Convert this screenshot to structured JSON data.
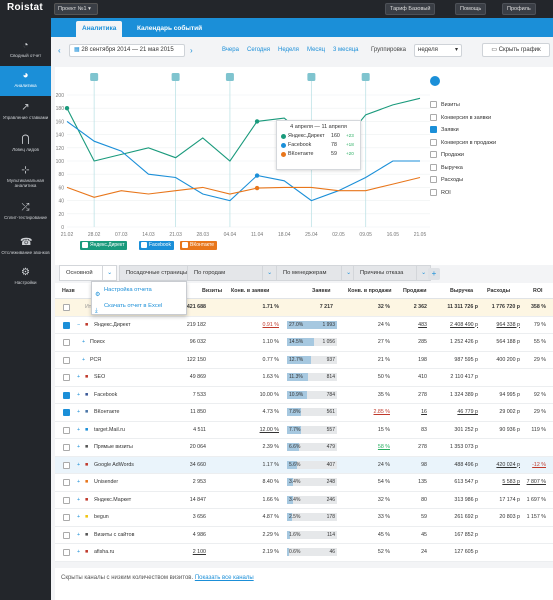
{
  "topbar": {
    "logo": "Roistat",
    "project": "Проект №1",
    "tariff": "Тариф Базовый",
    "help": "Помощь",
    "profile": "Профиль"
  },
  "sidebar": [
    {
      "label": "Сводный отчет",
      "icon": "gauge-icon"
    },
    {
      "label": "Аналитика",
      "icon": "pie-chart-icon",
      "active": true
    },
    {
      "label": "Управление ставками",
      "icon": "trend-icon"
    },
    {
      "label": "Ловец лидов",
      "icon": "magnet-icon"
    },
    {
      "label": "Мультиканальная аналитика",
      "icon": "network-icon"
    },
    {
      "label": "Сплит-тестирование",
      "icon": "shuffle-icon"
    },
    {
      "label": "Отслеживание звонков",
      "icon": "phone-icon"
    },
    {
      "label": "Настройки",
      "icon": "gear-icon"
    }
  ],
  "tabs": [
    "Аналитика",
    "Календарь событий"
  ],
  "toolbar": {
    "date_range": "28 сентября 2014 — 21 мая 2015",
    "periods": [
      "Вчера",
      "Сегодня",
      "Неделя",
      "Месяц",
      "3 месяца"
    ],
    "group_label": "Группировка",
    "group_value": "неделя",
    "hide_chart": "Скрыть график"
  },
  "chart_data": {
    "type": "line",
    "x": [
      "21.02",
      "28.02",
      "07.03",
      "14.03",
      "21.03",
      "28.03",
      "04.04",
      "11.04",
      "18.04",
      "25.04",
      "02.05",
      "09.05",
      "16.05",
      "21.05"
    ],
    "ylim": [
      0,
      200
    ],
    "yticks": [
      0,
      20,
      40,
      60,
      80,
      100,
      120,
      140,
      160,
      180,
      200
    ],
    "series": [
      {
        "name": "Яндекс.Директ",
        "color": "#1a9a7c",
        "values": [
          180,
          100,
          110,
          120,
          105,
          135,
          100,
          160,
          165,
          130,
          120,
          170,
          185,
          195
        ]
      },
      {
        "name": "Facebook",
        "color": "#1b8fd8",
        "values": [
          160,
          130,
          115,
          80,
          75,
          50,
          40,
          78,
          70,
          40,
          55,
          75,
          100,
          100
        ]
      },
      {
        "name": "ВКонтакте",
        "color": "#e8761b",
        "values": [
          60,
          45,
          55,
          50,
          55,
          60,
          50,
          59,
          60,
          60,
          55,
          55,
          65,
          75
        ]
      }
    ],
    "legend": [
      "Визиты",
      "Конверсия в заявки",
      "Заявки",
      "Конверсия в продажи",
      "Продажи",
      "Выручка",
      "Расходы",
      "ROI"
    ],
    "legend_checked": "Заявки",
    "tooltip": {
      "title": "4 апреля — 11 апреля",
      "rows": [
        {
          "name": "Яндекс.Директ",
          "value": "160",
          "delta": "+23"
        },
        {
          "name": "Facebook",
          "value": "78",
          "delta": "+18"
        },
        {
          "name": "ВКонтакте",
          "value": "59",
          "delta": "+20"
        }
      ]
    }
  },
  "series_tags": [
    "Яндекс.Директ",
    "Facebook",
    "ВКонтакте"
  ],
  "report_tabs": [
    "Основной",
    "Посадочные страницы",
    "По городам",
    "По менеджерам",
    "Причины отказа"
  ],
  "popup": {
    "item1": "Настройка отчета",
    "item2": "Скачать отчет в Excel"
  },
  "columns": [
    "Назв",
    "Визиты",
    "Конв. в заявки",
    "Заявки",
    "Конв. в продажи",
    "Продажи",
    "Выручка",
    "Расходы",
    "ROI"
  ],
  "total": {
    "name": "Итого",
    "visits": "421 688",
    "conv": "1.71 %",
    "leads": "7 217",
    "conv_sales": "32 %",
    "sales": "2 362",
    "revenue": "11 311 726 р",
    "costs": "1 776 720 р",
    "roi": "358 %"
  },
  "rows": [
    {
      "name": "Яндекс.Директ",
      "checked": true,
      "visits": "219 182",
      "conv": "0.91 %",
      "conv_red": true,
      "lead_pct": "27.0%",
      "leads": "1 993",
      "lead_fill": 0.27,
      "cs": "24 %",
      "sales": "483",
      "revenue": "2 408 490 р",
      "costs": "964 338 р",
      "roi": "79 %",
      "icon": "yandex-icon",
      "iconc": "#c0392b"
    },
    {
      "name": "Поиск",
      "indent": true,
      "visits": "96 032",
      "conv": "1.10 %",
      "lead_pct": "14.5%",
      "leads": "1 056",
      "lead_fill": 0.145,
      "cs": "27 %",
      "sales": "285",
      "revenue": "1 252 426 р",
      "costs": "564 188 р",
      "roi": "55 %"
    },
    {
      "name": "РСЯ",
      "indent": true,
      "visits": "122 150",
      "conv": "0.77 %",
      "lead_pct": "12.7%",
      "leads": "937",
      "lead_fill": 0.127,
      "cs": "21 %",
      "sales": "198",
      "revenue": "987 595 р",
      "costs": "400 200 р",
      "roi": "29 %"
    },
    {
      "name": "SEO",
      "visits": "49 869",
      "conv": "1.63 %",
      "lead_pct": "11.3%",
      "leads": "814",
      "lead_fill": 0.113,
      "cs": "50 %",
      "sales": "410",
      "revenue": "2 110 417 р",
      "costs": "",
      "roi": "",
      "icon": "seo-icon",
      "iconc": "#c0392b"
    },
    {
      "name": "Facebook",
      "checked": true,
      "visits": "7 533",
      "conv": "10.00 %",
      "lead_pct": "10.9%",
      "leads": "784",
      "lead_fill": 0.109,
      "cs": "35 %",
      "sales": "278",
      "revenue": "1 324 389 р",
      "costs": "94 995 р",
      "roi": "92 %",
      "icon": "facebook-icon",
      "iconc": "#3b5998"
    },
    {
      "name": "ВКонтакте",
      "checked": true,
      "visits": "11 850",
      "conv": "4.73 %",
      "lead_pct": "7.8%",
      "leads": "561",
      "lead_fill": 0.078,
      "cs": "2.85 %",
      "cs_red": true,
      "sales": "16",
      "revenue": "46 779 р",
      "costs": "29 002 р",
      "roi": "29 %",
      "icon": "vk-icon",
      "iconc": "#4a76a8"
    },
    {
      "name": "target.Mail.ru",
      "visits": "4 511",
      "conv": "12.00 %",
      "lead_pct": "7.7%",
      "leads": "557",
      "lead_fill": 0.077,
      "cs": "15 %",
      "sales": "83",
      "revenue": "301 252 р",
      "costs": "90 936 р",
      "roi": "119 %",
      "icon": "mail-icon",
      "iconc": "#1b8fd8"
    },
    {
      "name": "Прямые визиты",
      "visits": "20 064",
      "conv": "2.39 %",
      "lead_pct": "6.6%",
      "leads": "479",
      "lead_fill": 0.066,
      "cs": "58 %",
      "cs_grn": true,
      "sales": "278",
      "revenue": "1 353 073 р",
      "costs": "",
      "roi": "",
      "icon": "direct-icon",
      "iconc": "#555"
    },
    {
      "name": "Google AdWords",
      "hl": true,
      "visits": "34 660",
      "conv": "1.17 %",
      "lead_pct": "5.6%",
      "leads": "407",
      "lead_fill": 0.056,
      "cs": "24 %",
      "sales": "98",
      "revenue": "488 496 р",
      "costs": "420 024 р",
      "roi": "-12 %",
      "roi_red": true,
      "icon": "google-icon",
      "iconc": "#c0392b"
    },
    {
      "name": "Unisender",
      "visits": "2 953",
      "conv": "8.40 %",
      "lead_pct": "3.4%",
      "leads": "248",
      "lead_fill": 0.034,
      "cs": "54 %",
      "sales": "135",
      "revenue": "613 547 р",
      "costs": "5 583 р",
      "roi": "7 807 %",
      "icon": "unisender-icon",
      "iconc": "#e8761b"
    },
    {
      "name": "Яндекс.Маркет",
      "visits": "14 847",
      "conv": "1.66 %",
      "lead_pct": "3.4%",
      "leads": "246",
      "lead_fill": 0.034,
      "cs": "32 %",
      "sales": "80",
      "revenue": "313 986 р",
      "costs": "17 174 р",
      "roi": "1 697 %",
      "icon": "market-icon",
      "iconc": "#c0392b"
    },
    {
      "name": "begun",
      "visits": "3 656",
      "conv": "4.87 %",
      "lead_pct": "2.5%",
      "leads": "178",
      "lead_fill": 0.025,
      "cs": "33 %",
      "sales": "59",
      "revenue": "261 692 р",
      "costs": "20 803 р",
      "roi": "1 157 %",
      "icon": "begun-icon",
      "iconc": "#f1c40f"
    },
    {
      "name": "Визиты с сайтов",
      "visits": "4 986",
      "conv": "2.29 %",
      "lead_pct": "1.6%",
      "leads": "114",
      "lead_fill": 0.016,
      "cs": "45 %",
      "sales": "45",
      "revenue": "167 852 р",
      "costs": "",
      "roi": "",
      "icon": "sites-icon",
      "iconc": "#555"
    },
    {
      "name": "afisha.ru",
      "visits": "2 100",
      "conv": "2.19 %",
      "lead_pct": "0.6%",
      "leads": "46",
      "lead_fill": 0.006,
      "cs": "52 %",
      "sales": "24",
      "revenue": "127 605 р",
      "costs": "",
      "roi": "",
      "icon": "afisha-icon",
      "iconc": "#c0392b"
    }
  ],
  "footer": {
    "text": "Скрыты каналы с низким количеством визитов.",
    "link": "Показать все каналы"
  }
}
